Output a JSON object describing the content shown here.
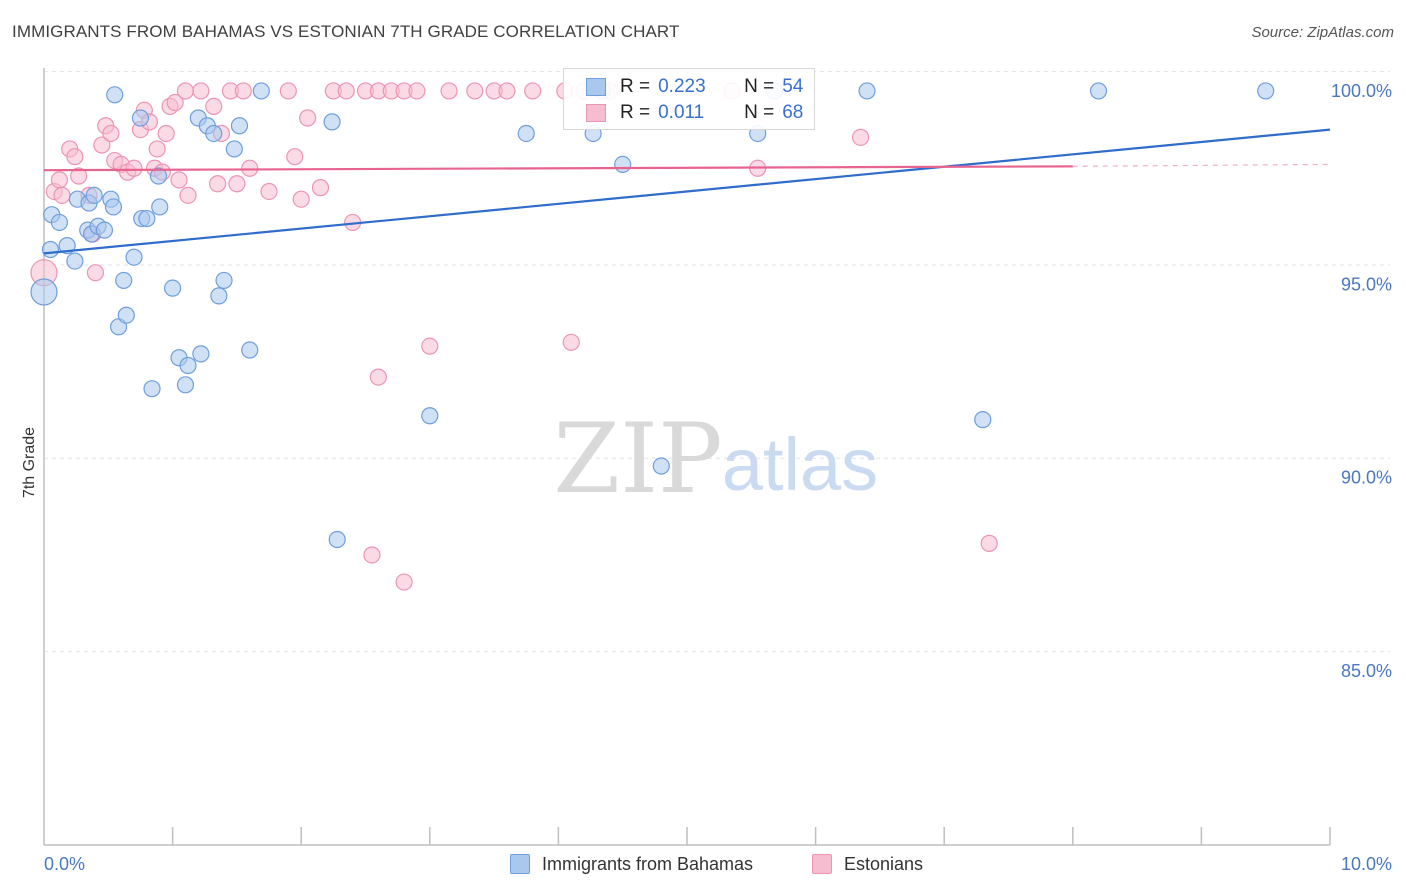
{
  "header": {
    "title": "IMMIGRANTS FROM BAHAMAS VS ESTONIAN 7TH GRADE CORRELATION CHART",
    "source": "Source: ZipAtlas.com"
  },
  "colors": {
    "blue_fill": "#aac8ee",
    "blue_stroke": "#6f9edc",
    "blue_line": "#2f6ccc",
    "pink_fill": "#f6bdd0",
    "pink_stroke": "#ec94b3",
    "pink_line": "#e8648e",
    "axis_text": "#4a78c2",
    "grid": "#e2e2e2"
  },
  "legend": {
    "r_label": "R =",
    "n_label": "N =",
    "series": [
      {
        "name": "Immigrants from Bahamas",
        "r": "0.223",
        "n": "54"
      },
      {
        "name": "Estonians",
        "r": "0.011",
        "n": "68"
      }
    ]
  },
  "watermark": {
    "zip": "ZIP",
    "atlas": "atlas"
  },
  "chart_data": {
    "type": "scatter",
    "title": "IMMIGRANTS FROM BAHAMAS VS ESTONIAN 7TH GRADE CORRELATION CHART",
    "xlabel": "",
    "ylabel": "7th Grade",
    "xlim": [
      0,
      10
    ],
    "ylim": [
      80.5,
      100.8
    ],
    "x_tick_labels": {
      "left": "0.0%",
      "right": "10.0%"
    },
    "x_minor_ticks": [
      1,
      2,
      3,
      4,
      5,
      6,
      7,
      8,
      9,
      10
    ],
    "y_ticks": [
      {
        "value": 100,
        "label": "100.0%"
      },
      {
        "value": 95,
        "label": "95.0%"
      },
      {
        "value": 90,
        "label": "90.0%"
      },
      {
        "value": 85,
        "label": "85.0%"
      }
    ],
    "gridlines": [
      100.5,
      95.5,
      90.5,
      85.5
    ],
    "series": [
      {
        "name": "Immigrants from Bahamas",
        "color": "blue",
        "trend": {
          "x0": 0,
          "y0": 95.8,
          "x1": 10,
          "y1": 99.0
        },
        "points": [
          [
            0.0,
            94.8
          ],
          [
            0.06,
            96.8
          ],
          [
            0.12,
            96.6
          ],
          [
            0.05,
            95.9
          ],
          [
            0.18,
            96.0
          ],
          [
            0.24,
            95.6
          ],
          [
            0.26,
            97.2
          ],
          [
            0.34,
            96.4
          ],
          [
            0.35,
            97.1
          ],
          [
            0.37,
            96.3
          ],
          [
            0.39,
            97.3
          ],
          [
            0.42,
            96.5
          ],
          [
            0.47,
            96.4
          ],
          [
            0.52,
            97.2
          ],
          [
            0.54,
            97.0
          ],
          [
            0.58,
            93.9
          ],
          [
            0.62,
            95.1
          ],
          [
            0.64,
            94.2
          ],
          [
            0.7,
            95.7
          ],
          [
            0.75,
            99.3
          ],
          [
            0.76,
            96.7
          ],
          [
            0.8,
            96.7
          ],
          [
            0.84,
            92.3
          ],
          [
            0.89,
            97.8
          ],
          [
            0.9,
            97.0
          ],
          [
            1.0,
            94.9
          ],
          [
            1.05,
            93.1
          ],
          [
            1.1,
            92.4
          ],
          [
            1.12,
            92.9
          ],
          [
            1.2,
            99.3
          ],
          [
            1.22,
            93.2
          ],
          [
            1.27,
            99.1
          ],
          [
            1.32,
            98.9
          ],
          [
            1.36,
            94.7
          ],
          [
            1.4,
            95.1
          ],
          [
            1.48,
            98.5
          ],
          [
            1.52,
            99.1
          ],
          [
            1.6,
            93.3
          ],
          [
            1.69,
            100.0
          ],
          [
            2.24,
            99.2
          ],
          [
            2.28,
            88.4
          ],
          [
            3.0,
            91.6
          ],
          [
            3.75,
            98.9
          ],
          [
            4.27,
            98.9
          ],
          [
            4.34,
            100.0
          ],
          [
            4.5,
            98.1
          ],
          [
            4.8,
            90.3
          ],
          [
            5.55,
            98.9
          ],
          [
            5.68,
            100.0
          ],
          [
            6.4,
            100.0
          ],
          [
            7.3,
            91.5
          ],
          [
            8.2,
            100.0
          ],
          [
            9.5,
            100.0
          ],
          [
            0.55,
            99.9
          ]
        ]
      },
      {
        "name": "Estonians",
        "color": "pink",
        "trend": {
          "x0": 0,
          "y0": 97.95,
          "x1": 8.0,
          "y1": 98.05,
          "dash_to": 10,
          "dash_y": 98.1
        },
        "points": [
          [
            0.0,
            95.3
          ],
          [
            0.08,
            97.4
          ],
          [
            0.12,
            97.7
          ],
          [
            0.14,
            97.3
          ],
          [
            0.2,
            98.5
          ],
          [
            0.24,
            98.3
          ],
          [
            0.27,
            97.8
          ],
          [
            0.35,
            97.3
          ],
          [
            0.38,
            96.3
          ],
          [
            0.4,
            95.3
          ],
          [
            0.45,
            98.6
          ],
          [
            0.48,
            99.1
          ],
          [
            0.52,
            98.9
          ],
          [
            0.55,
            98.2
          ],
          [
            0.6,
            98.1
          ],
          [
            0.65,
            97.9
          ],
          [
            0.7,
            98.0
          ],
          [
            0.75,
            99.0
          ],
          [
            0.78,
            99.5
          ],
          [
            0.82,
            99.2
          ],
          [
            0.86,
            98.0
          ],
          [
            0.88,
            98.5
          ],
          [
            0.92,
            97.9
          ],
          [
            0.95,
            98.9
          ],
          [
            0.98,
            99.6
          ],
          [
            1.02,
            99.7
          ],
          [
            1.05,
            97.7
          ],
          [
            1.1,
            100.0
          ],
          [
            1.12,
            97.3
          ],
          [
            1.22,
            100.0
          ],
          [
            1.32,
            99.6
          ],
          [
            1.35,
            97.6
          ],
          [
            1.38,
            98.9
          ],
          [
            1.45,
            100.0
          ],
          [
            1.5,
            97.6
          ],
          [
            1.55,
            100.0
          ],
          [
            1.6,
            98.0
          ],
          [
            1.75,
            97.4
          ],
          [
            1.9,
            100.0
          ],
          [
            1.95,
            98.3
          ],
          [
            2.0,
            97.2
          ],
          [
            2.05,
            99.3
          ],
          [
            2.15,
            97.5
          ],
          [
            2.25,
            100.0
          ],
          [
            2.35,
            100.0
          ],
          [
            2.4,
            96.6
          ],
          [
            2.5,
            100.0
          ],
          [
            2.6,
            100.0
          ],
          [
            2.7,
            100.0
          ],
          [
            2.8,
            100.0
          ],
          [
            2.9,
            100.0
          ],
          [
            3.0,
            93.4
          ],
          [
            3.15,
            100.0
          ],
          [
            3.35,
            100.0
          ],
          [
            3.5,
            100.0
          ],
          [
            3.6,
            100.0
          ],
          [
            3.8,
            100.0
          ],
          [
            4.05,
            100.0
          ],
          [
            4.2,
            100.0
          ],
          [
            4.4,
            100.0
          ],
          [
            4.1,
            93.5
          ],
          [
            2.6,
            92.6
          ],
          [
            2.55,
            88.0
          ],
          [
            2.8,
            87.3
          ],
          [
            5.35,
            100.0
          ],
          [
            5.55,
            98.0
          ],
          [
            6.35,
            98.8
          ],
          [
            7.35,
            88.3
          ]
        ]
      }
    ]
  }
}
